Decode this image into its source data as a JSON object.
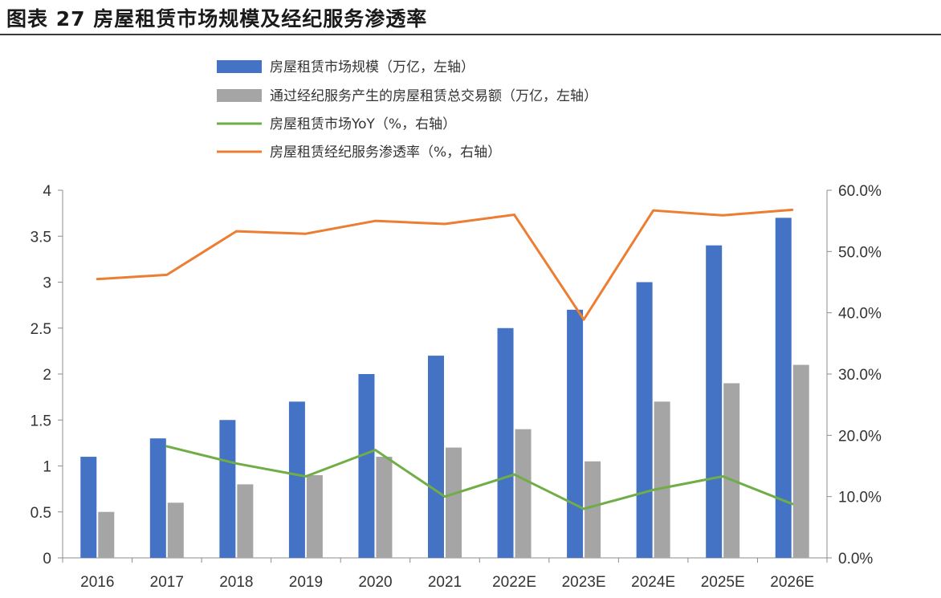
{
  "title": "图表 27  房屋租赁市场规模及经纪服务渗透率",
  "chart_data": {
    "type": "bar",
    "categories": [
      "2016",
      "2017",
      "2018",
      "2019",
      "2020",
      "2021",
      "2022E",
      "2023E",
      "2024E",
      "2025E",
      "2026E"
    ],
    "series": [
      {
        "name": "房屋租赁市场规模（万亿，左轴）",
        "type": "bar",
        "axis": "left",
        "color": "#4472C4",
        "values": [
          1.1,
          1.3,
          1.5,
          1.7,
          2.0,
          2.2,
          2.5,
          2.7,
          3.0,
          3.4,
          3.7
        ]
      },
      {
        "name": "通过经纪服务产生的房屋租赁总交易额（万亿，左轴）",
        "type": "bar",
        "axis": "left",
        "color": "#A5A5A5",
        "values": [
          0.5,
          0.6,
          0.8,
          0.9,
          1.1,
          1.2,
          1.4,
          1.05,
          1.7,
          1.9,
          2.1
        ]
      },
      {
        "name": "房屋租赁市场YoY（%，右轴）",
        "type": "line",
        "axis": "right",
        "color": "#70AD47",
        "values": [
          null,
          18.2,
          15.4,
          13.3,
          17.6,
          10.0,
          13.6,
          8.0,
          11.1,
          13.3,
          8.8
        ]
      },
      {
        "name": "房屋租赁经纪服务渗透率（%，右轴）",
        "type": "line",
        "axis": "right",
        "color": "#ED7D31",
        "values": [
          45.5,
          46.2,
          53.3,
          52.9,
          55.0,
          54.5,
          56.0,
          38.9,
          56.7,
          55.9,
          56.8
        ]
      }
    ],
    "left_axis": {
      "ylim": [
        0,
        4
      ],
      "ticks": [
        "0",
        "0.5",
        "1",
        "1.5",
        "2",
        "2.5",
        "3",
        "3.5",
        "4"
      ]
    },
    "right_axis": {
      "ylim": [
        0,
        60
      ],
      "ticks": [
        "0.0%",
        "10.0%",
        "20.0%",
        "30.0%",
        "40.0%",
        "50.0%",
        "60.0%"
      ]
    },
    "grid": false,
    "legend_position": "top"
  }
}
